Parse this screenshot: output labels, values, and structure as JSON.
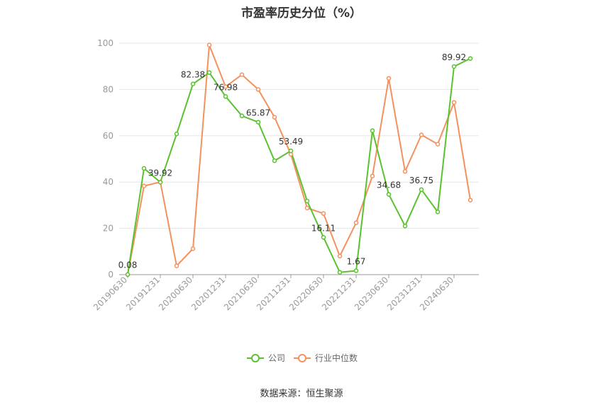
{
  "chart_data": {
    "type": "line",
    "title": "市盈率历史分位（%）",
    "xlabel": "",
    "ylabel": "",
    "ylim": [
      0,
      100
    ],
    "yticks": [
      0,
      20,
      40,
      60,
      80,
      100
    ],
    "x": [
      "20190630",
      "20190930",
      "20191231",
      "20200331",
      "20200630",
      "20200930",
      "20201231",
      "20210331",
      "20210630",
      "20210930",
      "20211231",
      "20220331",
      "20220630",
      "20220930",
      "20221231",
      "20230331",
      "20230630",
      "20230930",
      "20231231",
      "20240331",
      "20240630",
      "20240930"
    ],
    "xtick_labels": [
      "20190630",
      "20191231",
      "20200630",
      "20201231",
      "20210630",
      "20211231",
      "20220630",
      "20221231",
      "20230630",
      "20231231",
      "20240630"
    ],
    "series": [
      {
        "name": "公司",
        "color": "#5ac230",
        "values": [
          0.08,
          45.9,
          39.92,
          60.8,
          82.38,
          87.3,
          76.98,
          68.6,
          65.87,
          49.2,
          53.49,
          31.8,
          16.11,
          1.0,
          1.67,
          62.2,
          34.68,
          21.0,
          36.75,
          27.1,
          89.92,
          93.4
        ],
        "labels": {
          "0": "0.08",
          "2": "39.92",
          "4": "82.38",
          "6": "76.98",
          "8": "65.87",
          "10": "53.49",
          "12": "16.11",
          "14": "1.67",
          "16": "34.68",
          "18": "36.75",
          "20": "89.92"
        }
      },
      {
        "name": "行业中位数",
        "color": "#f4915e",
        "values": [
          0.0,
          38.3,
          40.0,
          3.8,
          11.2,
          99.2,
          81.2,
          86.4,
          80.0,
          68.0,
          52.0,
          28.8,
          26.4,
          8.0,
          22.4,
          42.6,
          84.8,
          44.6,
          60.4,
          56.4,
          74.4,
          32.2
        ]
      }
    ],
    "legend_position": "bottom",
    "grid": true
  },
  "source_note": "数据来源：恒生聚源"
}
